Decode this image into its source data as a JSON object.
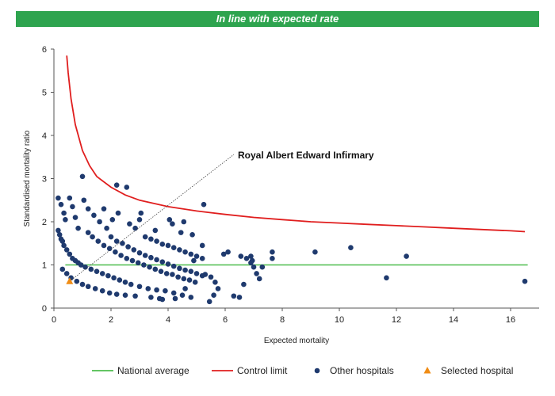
{
  "chart_data": {
    "type": "scatter",
    "title": "In line with expected rate",
    "xlabel": "Expected mortality",
    "ylabel": "Standardised mortality ratio",
    "xlim": [
      0,
      17
    ],
    "ylim": [
      0,
      6
    ],
    "xticks": [
      0,
      2,
      4,
      6,
      8,
      10,
      12,
      14,
      16
    ],
    "yticks": [
      0,
      1,
      2,
      3,
      4,
      5,
      6
    ],
    "grid": false,
    "legend_position": "bottom",
    "colors": {
      "banner": "#2ea44f",
      "national_average": "#4dbd4d",
      "control_limit": "#e01e1e",
      "other_hospitals": "#1f3a6e",
      "selected_hospital": "#f08c14"
    },
    "series": [
      {
        "name": "National average",
        "kind": "line",
        "x": [
          0.4,
          16.6
        ],
        "y": [
          1,
          1
        ]
      },
      {
        "name": "Control limit",
        "kind": "curve",
        "x": [
          0.45,
          0.5,
          0.6,
          0.75,
          1,
          1.25,
          1.5,
          2,
          2.5,
          3,
          4,
          5,
          6,
          7,
          8,
          9,
          10,
          11,
          12,
          13,
          14,
          15,
          16,
          16.5
        ],
        "y": [
          5.85,
          5.45,
          4.85,
          4.25,
          3.65,
          3.3,
          3.05,
          2.8,
          2.62,
          2.5,
          2.35,
          2.25,
          2.17,
          2.1,
          2.05,
          2.0,
          1.97,
          1.94,
          1.91,
          1.88,
          1.85,
          1.82,
          1.79,
          1.77
        ]
      },
      {
        "name": "Other hospitals",
        "kind": "scatter",
        "points": [
          [
            0.15,
            2.55
          ],
          [
            0.25,
            2.4
          ],
          [
            0.35,
            2.2
          ],
          [
            0.4,
            2.05
          ],
          [
            0.55,
            2.55
          ],
          [
            0.65,
            2.35
          ],
          [
            0.75,
            2.1
          ],
          [
            0.85,
            1.85
          ],
          [
            1.0,
            3.05
          ],
          [
            1.05,
            2.5
          ],
          [
            1.2,
            2.3
          ],
          [
            1.4,
            2.15
          ],
          [
            1.6,
            2.0
          ],
          [
            1.75,
            2.3
          ],
          [
            1.85,
            1.85
          ],
          [
            2.05,
            2.05
          ],
          [
            2.2,
            2.85
          ],
          [
            2.25,
            2.2
          ],
          [
            2.55,
            2.8
          ],
          [
            2.65,
            1.95
          ],
          [
            2.85,
            1.85
          ],
          [
            3.0,
            2.05
          ],
          [
            3.05,
            2.2
          ],
          [
            3.2,
            1.65
          ],
          [
            3.55,
            1.8
          ],
          [
            4.05,
            2.05
          ],
          [
            4.15,
            1.95
          ],
          [
            4.45,
            1.75
          ],
          [
            4.55,
            2.0
          ],
          [
            4.85,
            1.7
          ],
          [
            5.25,
            2.4
          ],
          [
            5.95,
            1.25
          ],
          [
            6.1,
            1.3
          ],
          [
            7.65,
            1.15
          ],
          [
            7.65,
            1.3
          ],
          [
            9.15,
            1.3
          ],
          [
            10.4,
            1.4
          ],
          [
            11.65,
            0.7
          ],
          [
            12.35,
            1.2
          ],
          [
            16.5,
            0.62
          ],
          [
            0.15,
            1.8
          ],
          [
            0.2,
            1.7
          ],
          [
            0.25,
            1.6
          ],
          [
            0.3,
            1.55
          ],
          [
            0.35,
            1.45
          ],
          [
            0.45,
            1.35
          ],
          [
            0.55,
            1.25
          ],
          [
            0.65,
            1.15
          ],
          [
            0.75,
            1.1
          ],
          [
            0.85,
            1.05
          ],
          [
            0.95,
            1.0
          ],
          [
            1.1,
            0.95
          ],
          [
            1.3,
            0.9
          ],
          [
            1.5,
            0.85
          ],
          [
            1.7,
            0.8
          ],
          [
            1.9,
            0.75
          ],
          [
            2.1,
            0.7
          ],
          [
            2.3,
            0.65
          ],
          [
            2.5,
            0.6
          ],
          [
            2.7,
            0.55
          ],
          [
            3.0,
            0.5
          ],
          [
            3.3,
            0.45
          ],
          [
            3.6,
            0.42
          ],
          [
            3.9,
            0.4
          ],
          [
            4.2,
            0.35
          ],
          [
            4.5,
            0.3
          ],
          [
            4.8,
            0.25
          ],
          [
            1.2,
            1.75
          ],
          [
            1.35,
            1.65
          ],
          [
            1.55,
            1.55
          ],
          [
            1.75,
            1.45
          ],
          [
            1.95,
            1.38
          ],
          [
            2.15,
            1.3
          ],
          [
            2.35,
            1.22
          ],
          [
            2.55,
            1.15
          ],
          [
            2.75,
            1.1
          ],
          [
            2.95,
            1.05
          ],
          [
            3.15,
            1.0
          ],
          [
            3.35,
            0.95
          ],
          [
            3.55,
            0.9
          ],
          [
            3.75,
            0.85
          ],
          [
            3.95,
            0.8
          ],
          [
            4.15,
            0.78
          ],
          [
            4.35,
            0.72
          ],
          [
            4.55,
            0.68
          ],
          [
            4.75,
            0.65
          ],
          [
            4.95,
            0.6
          ],
          [
            2.0,
            1.65
          ],
          [
            2.2,
            1.55
          ],
          [
            2.4,
            1.5
          ],
          [
            2.6,
            1.42
          ],
          [
            2.8,
            1.35
          ],
          [
            3.0,
            1.28
          ],
          [
            3.2,
            1.22
          ],
          [
            3.4,
            1.17
          ],
          [
            3.6,
            1.12
          ],
          [
            3.8,
            1.07
          ],
          [
            4.0,
            1.02
          ],
          [
            4.2,
            0.97
          ],
          [
            4.4,
            0.92
          ],
          [
            4.6,
            0.88
          ],
          [
            4.8,
            0.85
          ],
          [
            5.0,
            0.8
          ],
          [
            5.2,
            0.75
          ],
          [
            3.4,
            1.6
          ],
          [
            3.6,
            1.55
          ],
          [
            3.8,
            1.48
          ],
          [
            4.0,
            1.45
          ],
          [
            4.2,
            1.4
          ],
          [
            4.4,
            1.35
          ],
          [
            4.6,
            1.3
          ],
          [
            4.8,
            1.25
          ],
          [
            5.0,
            1.2
          ],
          [
            5.2,
            1.15
          ],
          [
            0.3,
            0.9
          ],
          [
            0.45,
            0.8
          ],
          [
            0.6,
            0.7
          ],
          [
            0.8,
            0.62
          ],
          [
            1.0,
            0.55
          ],
          [
            1.2,
            0.5
          ],
          [
            1.45,
            0.45
          ],
          [
            1.7,
            0.4
          ],
          [
            1.95,
            0.35
          ],
          [
            2.2,
            0.32
          ],
          [
            2.5,
            0.3
          ],
          [
            2.85,
            0.28
          ],
          [
            3.4,
            0.25
          ],
          [
            3.7,
            0.22
          ],
          [
            5.3,
            0.78
          ],
          [
            5.5,
            0.72
          ],
          [
            5.65,
            0.6
          ],
          [
            5.75,
            0.45
          ],
          [
            5.6,
            0.3
          ],
          [
            5.45,
            0.15
          ],
          [
            6.3,
            0.28
          ],
          [
            6.5,
            0.25
          ],
          [
            6.55,
            1.2
          ],
          [
            6.75,
            1.15
          ],
          [
            6.9,
            1.05
          ],
          [
            7.0,
            0.95
          ],
          [
            7.1,
            0.8
          ],
          [
            7.2,
            0.68
          ],
          [
            6.65,
            0.55
          ],
          [
            6.9,
            1.2
          ],
          [
            6.95,
            1.1
          ],
          [
            7.3,
            0.95
          ],
          [
            5.2,
            1.45
          ],
          [
            4.9,
            1.1
          ],
          [
            4.6,
            0.45
          ],
          [
            4.25,
            0.22
          ],
          [
            3.8,
            0.2
          ]
        ]
      },
      {
        "name": "Selected hospital",
        "kind": "marker",
        "points": [
          [
            0.55,
            0.62
          ]
        ]
      }
    ],
    "annotations": [
      {
        "text": "Royal Albert Edward Infirmary",
        "x": 0.55,
        "y": 0.62
      }
    ]
  }
}
